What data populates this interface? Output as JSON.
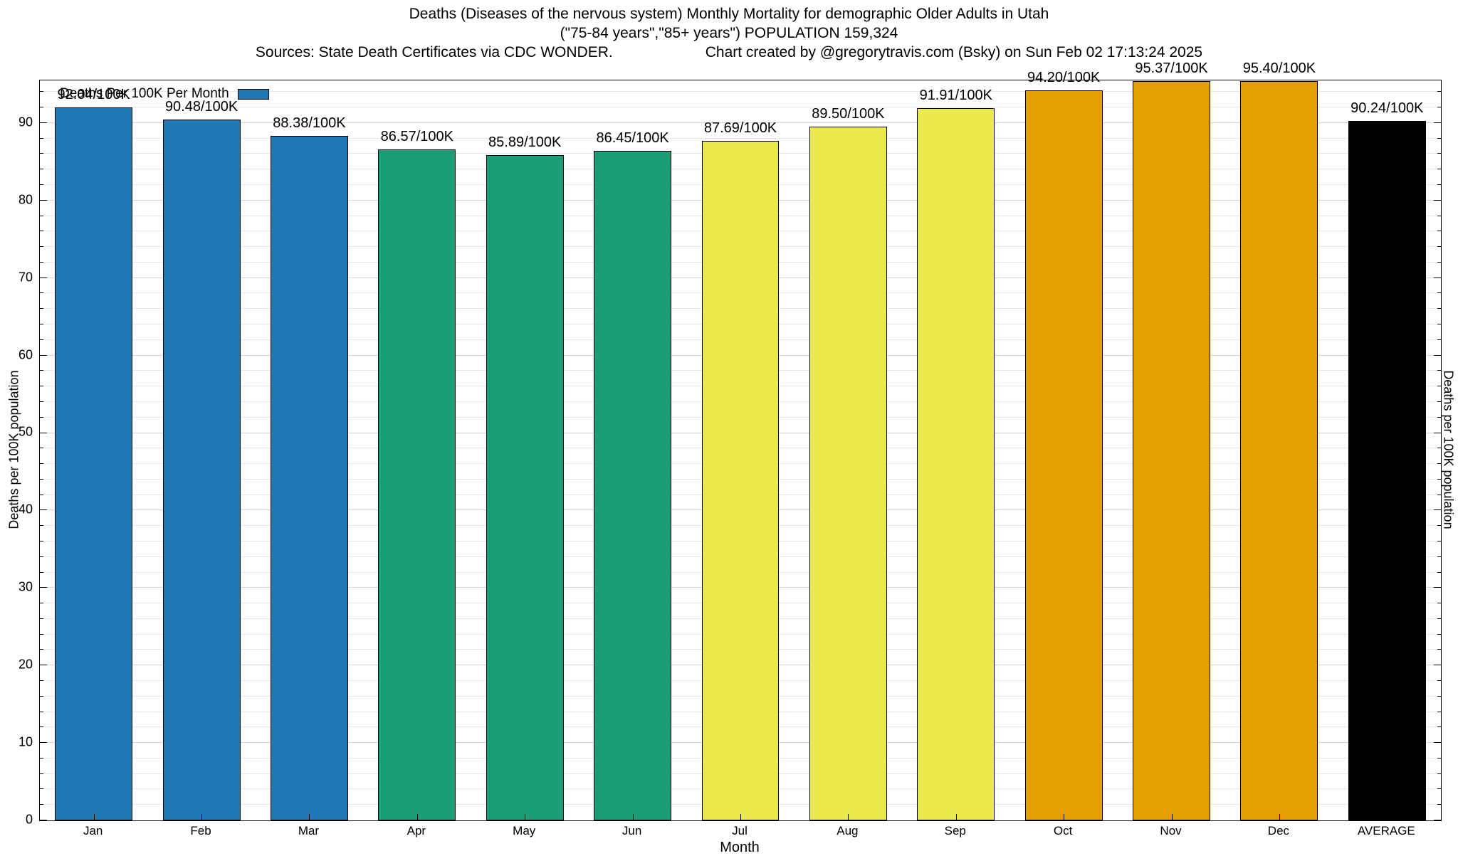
{
  "title": {
    "line1": "Deaths (Diseases of the nervous system) Monthly Mortality for demographic Older Adults in Utah",
    "line2": "(\"75-84 years\",\"85+ years\") POPULATION 159,324",
    "line3_left": "Sources: State Death Certificates via CDC WONDER.",
    "line3_right": "Chart created by @gregorytravis.com (Bsky) on Sun Feb 02 17:13:24 2025"
  },
  "legend": {
    "label": "Deaths Per 100K Per Month",
    "swatch_color": "#1f77b4"
  },
  "axes": {
    "y_left_label": "Deaths per 100K population",
    "y_right_label": "Deaths per 100K population",
    "x_label": "Month",
    "y_ticks": [
      0,
      10,
      20,
      30,
      40,
      50,
      60,
      70,
      80,
      90
    ],
    "y_max": 95.5
  },
  "chart_data": {
    "type": "bar",
    "title": "Deaths (Diseases of the nervous system) Monthly Mortality for demographic Older Adults in Utah",
    "subtitle": "(\"75-84 years\",\"85+ years\") POPULATION 159,324",
    "xlabel": "Month",
    "ylabel": "Deaths per 100K population",
    "ylim": [
      0,
      95.5
    ],
    "grid": true,
    "legend_position": "top-left",
    "categories": [
      "Jan",
      "Feb",
      "Mar",
      "Apr",
      "May",
      "Jun",
      "Jul",
      "Aug",
      "Sep",
      "Oct",
      "Nov",
      "Dec",
      "AVERAGE"
    ],
    "values": [
      92.04,
      90.48,
      88.38,
      86.57,
      85.89,
      86.45,
      87.69,
      89.5,
      91.91,
      94.2,
      95.37,
      95.4,
      90.24
    ],
    "labels": [
      "92.04/100K",
      "90.48/100K",
      "88.38/100K",
      "86.57/100K",
      "85.89/100K",
      "86.45/100K",
      "87.69/100K",
      "89.50/100K",
      "91.91/100K",
      "94.20/100K",
      "95.37/100K",
      "95.40/100K",
      "90.24/100K"
    ],
    "colors": [
      "#1f77b4",
      "#1f77b4",
      "#1f77b4",
      "#1b9e77",
      "#1b9e77",
      "#1b9e77",
      "#ece94f",
      "#ece94f",
      "#ece94f",
      "#e69f00",
      "#e69f00",
      "#e69f00",
      "#000000"
    ]
  }
}
